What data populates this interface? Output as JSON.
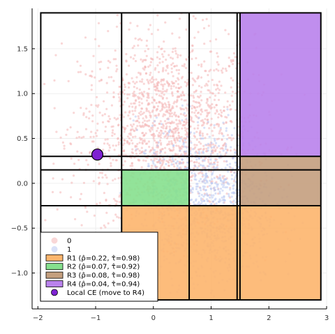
{
  "chart_data": {
    "type": "scatter",
    "title": "",
    "xlabel": "",
    "ylabel": "",
    "xlim": [
      -2.1,
      3.0
    ],
    "ylim": [
      -1.4,
      1.95
    ],
    "xticks": [
      -2,
      -1,
      0,
      1,
      2,
      3
    ],
    "xtick_labels": [
      "−2",
      "−1",
      "0",
      "1",
      "2",
      "3"
    ],
    "yticks": [
      -1.0,
      -0.5,
      0.0,
      0.5,
      1.0,
      1.5
    ],
    "ytick_labels": [
      "−1.0",
      "−0.5",
      "0.0",
      "0.5",
      "1.0",
      "1.5"
    ],
    "grid": true,
    "grid_lines": {
      "vertical": [
        -0.55,
        0.62,
        1.45,
        1.5
      ],
      "horizontal": [
        0.3,
        0.15,
        -0.25
      ]
    },
    "outer_box": {
      "x": [
        -1.95,
        2.9
      ],
      "y": [
        -1.3,
        1.9
      ]
    },
    "series": [
      {
        "name": "0",
        "color": "#f4b6b6",
        "n_points": 1800,
        "region": {
          "x": [
            -1.9,
            2.85
          ],
          "y": [
            -1.3,
            1.9
          ]
        }
      },
      {
        "name": "1",
        "color": "#b9c8f2",
        "n_points": 1200,
        "region": {
          "x": [
            -0.6,
            2.85
          ],
          "y": [
            -1.3,
            0.9
          ]
        }
      }
    ],
    "regions": [
      {
        "label": "R1 (ρ̂=0.22, τ̂=0.98)",
        "color": "#fdb56d",
        "x": [
          -0.55,
          2.9
        ],
        "y": [
          -1.3,
          -0.25
        ]
      },
      {
        "label": "R2 (ρ̂=0.07, τ̂=0.92)",
        "color": "#86e08e",
        "x": [
          -0.55,
          0.62
        ],
        "y": [
          -0.25,
          0.15
        ]
      },
      {
        "label": "R3 (ρ̂=0.08, τ̂=0.98)",
        "color": "#c49f7e",
        "x": [
          1.5,
          2.9
        ],
        "y": [
          -0.25,
          0.3
        ]
      },
      {
        "label": "R4 (ρ̂=0.04, τ̂=0.94)",
        "color": "#b982ec",
        "x": [
          1.5,
          2.9
        ],
        "y": [
          0.3,
          1.9
        ]
      }
    ],
    "local_ce": {
      "label": "Local CE (move to R4)",
      "x": -0.97,
      "y": 0.32,
      "color": "#7e22d2"
    },
    "legend": {
      "position": "bottom-left",
      "entries": [
        "0",
        "1",
        "R1 (ρ̂=0.22, τ̂=0.98)",
        "R2 (ρ̂=0.07, τ̂=0.92)",
        "R3 (ρ̂=0.08, τ̂=0.98)",
        "R4 (ρ̂=0.04, τ̂=0.94)",
        "Local CE (move to R4)"
      ]
    }
  }
}
